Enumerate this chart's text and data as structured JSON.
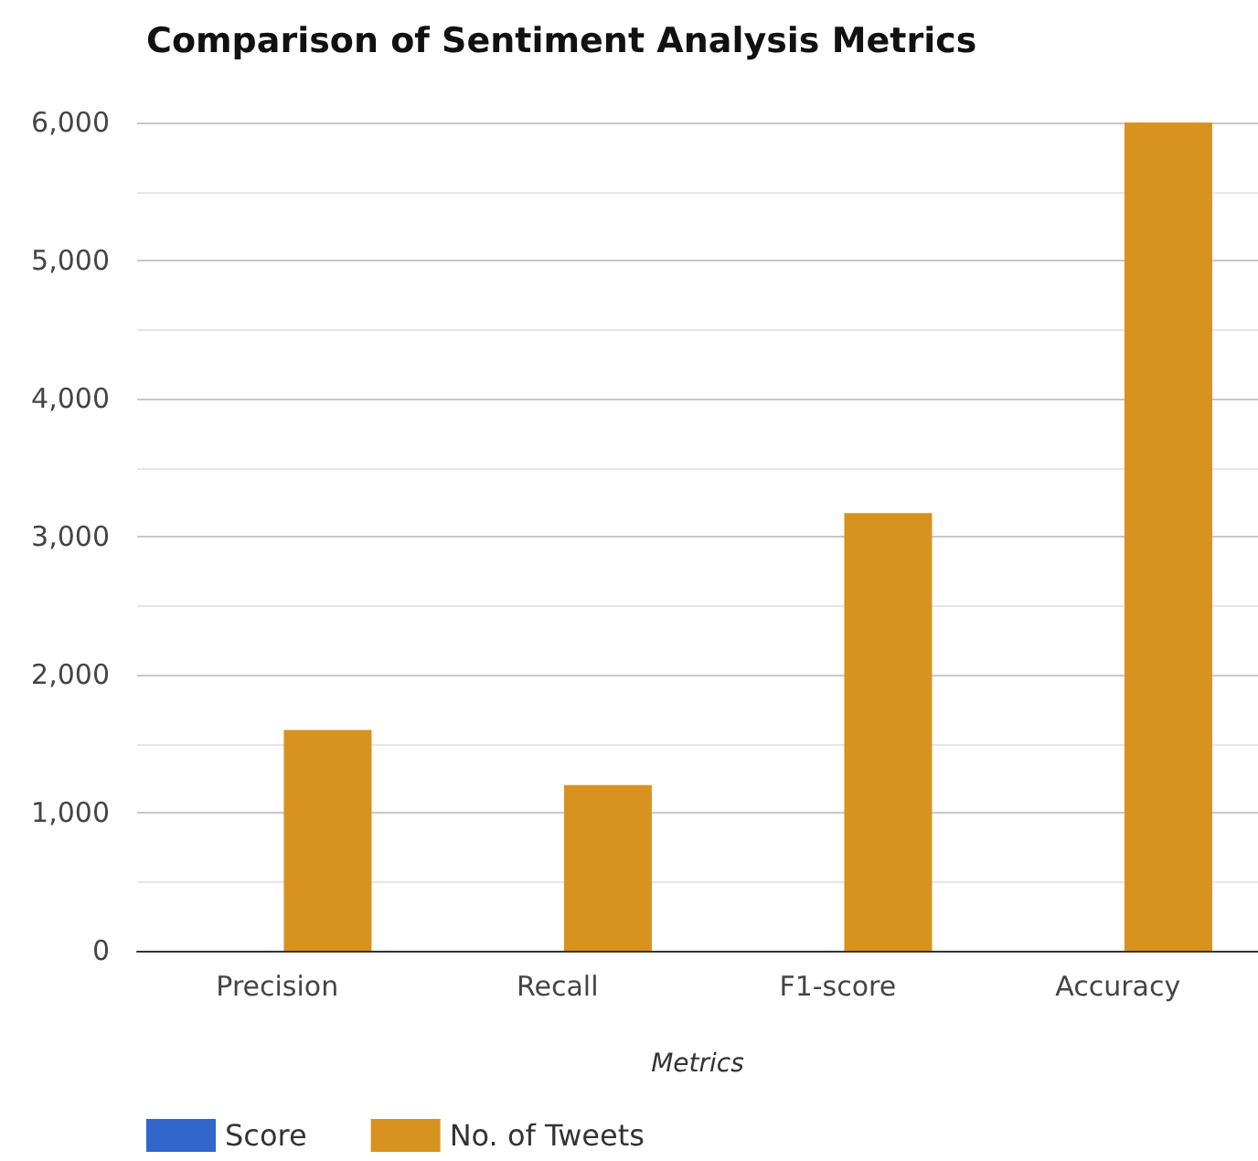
{
  "chart_data": {
    "type": "bar",
    "title": "Comparison of Sentiment Analysis Metrics",
    "xlabel": "Metrics",
    "categories": [
      "Precision",
      "Recall",
      "F1-score",
      "Accuracy"
    ],
    "series": [
      {
        "name": "Score",
        "color": "#3366cc",
        "values": [
          0,
          0,
          0,
          0
        ]
      },
      {
        "name": "No. of Tweets",
        "color": "#d8921f",
        "values": [
          1600,
          1200,
          3170,
          6000
        ]
      }
    ],
    "ylim": [
      0,
      6000
    ],
    "yticks": [
      0,
      {
        "value": 500,
        "label": null
      },
      {
        "value": 1000,
        "label": "1,000"
      },
      {
        "value": 1500,
        "label": null
      },
      {
        "value": 2000,
        "label": "2,000"
      },
      {
        "value": 2500,
        "label": null
      },
      {
        "value": 3000,
        "label": "3,000"
      },
      {
        "value": 3500,
        "label": null
      },
      {
        "value": 4000,
        "label": "4,000"
      },
      {
        "value": 4500,
        "label": null
      },
      {
        "value": 5000,
        "label": "5,000"
      },
      {
        "value": 5500,
        "label": null
      },
      {
        "value": 6000,
        "label": "6,000"
      }
    ],
    "grid": "y",
    "legend": "bottom left"
  }
}
